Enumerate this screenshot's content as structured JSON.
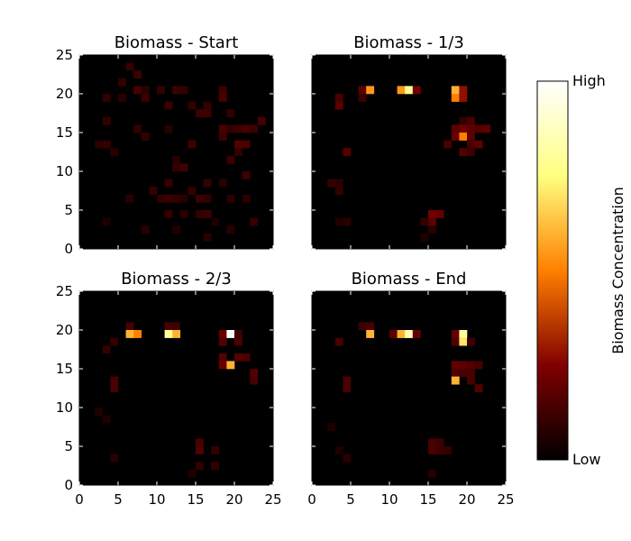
{
  "chart_data": {
    "type": "heatmap",
    "xlim": [
      0,
      25
    ],
    "ylim": [
      0,
      25
    ],
    "x_ticks": [
      "0",
      "5",
      "10",
      "15",
      "20",
      "25"
    ],
    "y_ticks": [
      "0",
      "5",
      "10",
      "15",
      "20",
      "25"
    ],
    "value_scale": "0 = Low, 1 = High (relative biomass concentration)",
    "colorbar": {
      "label": "Biomass Concentration",
      "high_label": "High",
      "low_label": "Low",
      "colormap": "afmhot",
      "stops": [
        "#000000",
        "#800000",
        "#ff8000",
        "#ffff80",
        "#ffffff"
      ]
    },
    "panels": [
      {
        "title": "Biomass - Start",
        "cells": [
          [
            6,
            23,
            0.1
          ],
          [
            7,
            22,
            0.12
          ],
          [
            5,
            21,
            0.1
          ],
          [
            7,
            20,
            0.14
          ],
          [
            8,
            20,
            0.08
          ],
          [
            10,
            20,
            0.1
          ],
          [
            12,
            20,
            0.12
          ],
          [
            13,
            20,
            0.1
          ],
          [
            18,
            20,
            0.12
          ],
          [
            3,
            19,
            0.1
          ],
          [
            5,
            19,
            0.08
          ],
          [
            8,
            19,
            0.12
          ],
          [
            18,
            19,
            0.14
          ],
          [
            11,
            18,
            0.12
          ],
          [
            14,
            18,
            0.1
          ],
          [
            16,
            18,
            0.1
          ],
          [
            15,
            17,
            0.12
          ],
          [
            16,
            17,
            0.12
          ],
          [
            19,
            17,
            0.1
          ],
          [
            3,
            16,
            0.1
          ],
          [
            23,
            16,
            0.14
          ],
          [
            7,
            15,
            0.1
          ],
          [
            11,
            15,
            0.08
          ],
          [
            18,
            15,
            0.14
          ],
          [
            19,
            15,
            0.1
          ],
          [
            20,
            15,
            0.12
          ],
          [
            21,
            15,
            0.14
          ],
          [
            22,
            15,
            0.12
          ],
          [
            8,
            14,
            0.1
          ],
          [
            18,
            14,
            0.12
          ],
          [
            2,
            13,
            0.08
          ],
          [
            3,
            13,
            0.1
          ],
          [
            14,
            13,
            0.12
          ],
          [
            20,
            13,
            0.16
          ],
          [
            21,
            13,
            0.14
          ],
          [
            4,
            12,
            0.08
          ],
          [
            20,
            12,
            0.1
          ],
          [
            12,
            11,
            0.08
          ],
          [
            19,
            11,
            0.12
          ],
          [
            12,
            10,
            0.1
          ],
          [
            13,
            10,
            0.12
          ],
          [
            21,
            9,
            0.12
          ],
          [
            11,
            8,
            0.1
          ],
          [
            16,
            8,
            0.1
          ],
          [
            18,
            8,
            0.08
          ],
          [
            9,
            7,
            0.1
          ],
          [
            14,
            7,
            0.1
          ],
          [
            6,
            6,
            0.08
          ],
          [
            10,
            6,
            0.1
          ],
          [
            11,
            6,
            0.12
          ],
          [
            12,
            6,
            0.1
          ],
          [
            13,
            6,
            0.08
          ],
          [
            15,
            6,
            0.12
          ],
          [
            16,
            6,
            0.1
          ],
          [
            19,
            6,
            0.08
          ],
          [
            21,
            6,
            0.08
          ],
          [
            11,
            4,
            0.1
          ],
          [
            13,
            4,
            0.08
          ],
          [
            15,
            4,
            0.1
          ],
          [
            16,
            4,
            0.12
          ],
          [
            3,
            3,
            0.06
          ],
          [
            17,
            3,
            0.06
          ],
          [
            22,
            3,
            0.1
          ],
          [
            8,
            2,
            0.08
          ],
          [
            12,
            2,
            0.06
          ],
          [
            19,
            2,
            0.08
          ],
          [
            16,
            1,
            0.08
          ]
        ]
      },
      {
        "title": "Biomass - 1/3",
        "cells": [
          [
            6,
            20,
            0.18
          ],
          [
            7,
            20,
            0.55
          ],
          [
            11,
            20,
            0.55
          ],
          [
            12,
            20,
            0.8
          ],
          [
            13,
            20,
            0.22
          ],
          [
            18,
            20,
            0.6
          ],
          [
            19,
            20,
            0.28
          ],
          [
            3,
            19,
            0.14
          ],
          [
            6,
            19,
            0.12
          ],
          [
            18,
            19,
            0.5
          ],
          [
            19,
            19,
            0.28
          ],
          [
            3,
            18,
            0.18
          ],
          [
            19,
            16,
            0.1
          ],
          [
            20,
            16,
            0.14
          ],
          [
            18,
            15,
            0.18
          ],
          [
            19,
            15,
            0.22
          ],
          [
            20,
            15,
            0.18
          ],
          [
            21,
            15,
            0.16
          ],
          [
            22,
            15,
            0.18
          ],
          [
            18,
            14,
            0.2
          ],
          [
            19,
            14,
            0.5
          ],
          [
            20,
            14,
            0.18
          ],
          [
            17,
            13,
            0.14
          ],
          [
            20,
            13,
            0.14
          ],
          [
            21,
            13,
            0.18
          ],
          [
            19,
            12,
            0.16
          ],
          [
            20,
            12,
            0.12
          ],
          [
            4,
            12,
            0.16
          ],
          [
            2,
            8,
            0.1
          ],
          [
            3,
            8,
            0.08
          ],
          [
            3,
            7,
            0.1
          ],
          [
            15,
            4,
            0.22
          ],
          [
            16,
            4,
            0.2
          ],
          [
            15,
            3,
            0.18
          ],
          [
            3,
            3,
            0.06
          ],
          [
            4,
            3,
            0.08
          ],
          [
            14,
            3,
            0.1
          ],
          [
            15,
            2,
            0.08
          ],
          [
            14,
            1,
            0.06
          ]
        ]
      },
      {
        "title": "Biomass - 2/3",
        "cells": [
          [
            6,
            20,
            0.14
          ],
          [
            11,
            20,
            0.14
          ],
          [
            12,
            20,
            0.12
          ],
          [
            6,
            19,
            0.6
          ],
          [
            7,
            19,
            0.5
          ],
          [
            11,
            19,
            0.8
          ],
          [
            12,
            19,
            0.6
          ],
          [
            18,
            19,
            0.2
          ],
          [
            19,
            19,
            1.0
          ],
          [
            20,
            19,
            0.12
          ],
          [
            4,
            18,
            0.1
          ],
          [
            18,
            18,
            0.16
          ],
          [
            20,
            18,
            0.14
          ],
          [
            3,
            17,
            0.1
          ],
          [
            18,
            16,
            0.16
          ],
          [
            20,
            16,
            0.16
          ],
          [
            21,
            16,
            0.14
          ],
          [
            18,
            15,
            0.2
          ],
          [
            19,
            15,
            0.6
          ],
          [
            22,
            14,
            0.16
          ],
          [
            4,
            13,
            0.14
          ],
          [
            22,
            13,
            0.14
          ],
          [
            4,
            12,
            0.14
          ],
          [
            2,
            9,
            0.06
          ],
          [
            3,
            8,
            0.06
          ],
          [
            15,
            5,
            0.14
          ],
          [
            15,
            4,
            0.16
          ],
          [
            17,
            4,
            0.1
          ],
          [
            4,
            3,
            0.08
          ],
          [
            15,
            2,
            0.1
          ],
          [
            17,
            2,
            0.1
          ],
          [
            14,
            1,
            0.06
          ]
        ]
      },
      {
        "title": "Biomass - End",
        "cells": [
          [
            6,
            20,
            0.12
          ],
          [
            7,
            20,
            0.14
          ],
          [
            7,
            19,
            0.6
          ],
          [
            10,
            19,
            0.18
          ],
          [
            11,
            19,
            0.6
          ],
          [
            12,
            19,
            0.85
          ],
          [
            13,
            19,
            0.2
          ],
          [
            18,
            19,
            0.2
          ],
          [
            19,
            19,
            0.8
          ],
          [
            3,
            18,
            0.14
          ],
          [
            18,
            18,
            0.16
          ],
          [
            19,
            18,
            0.7
          ],
          [
            20,
            18,
            0.12
          ],
          [
            18,
            15,
            0.2
          ],
          [
            19,
            15,
            0.18
          ],
          [
            20,
            15,
            0.16
          ],
          [
            21,
            15,
            0.14
          ],
          [
            18,
            14,
            0.16
          ],
          [
            19,
            14,
            0.14
          ],
          [
            20,
            14,
            0.14
          ],
          [
            18,
            13,
            0.6
          ],
          [
            20,
            13,
            0.14
          ],
          [
            21,
            12,
            0.16
          ],
          [
            4,
            13,
            0.14
          ],
          [
            4,
            12,
            0.14
          ],
          [
            2,
            7,
            0.06
          ],
          [
            3,
            4,
            0.06
          ],
          [
            4,
            3,
            0.08
          ],
          [
            15,
            5,
            0.14
          ],
          [
            16,
            5,
            0.12
          ],
          [
            15,
            4,
            0.14
          ],
          [
            16,
            4,
            0.12
          ],
          [
            17,
            4,
            0.1
          ],
          [
            15,
            1,
            0.08
          ]
        ]
      }
    ]
  }
}
